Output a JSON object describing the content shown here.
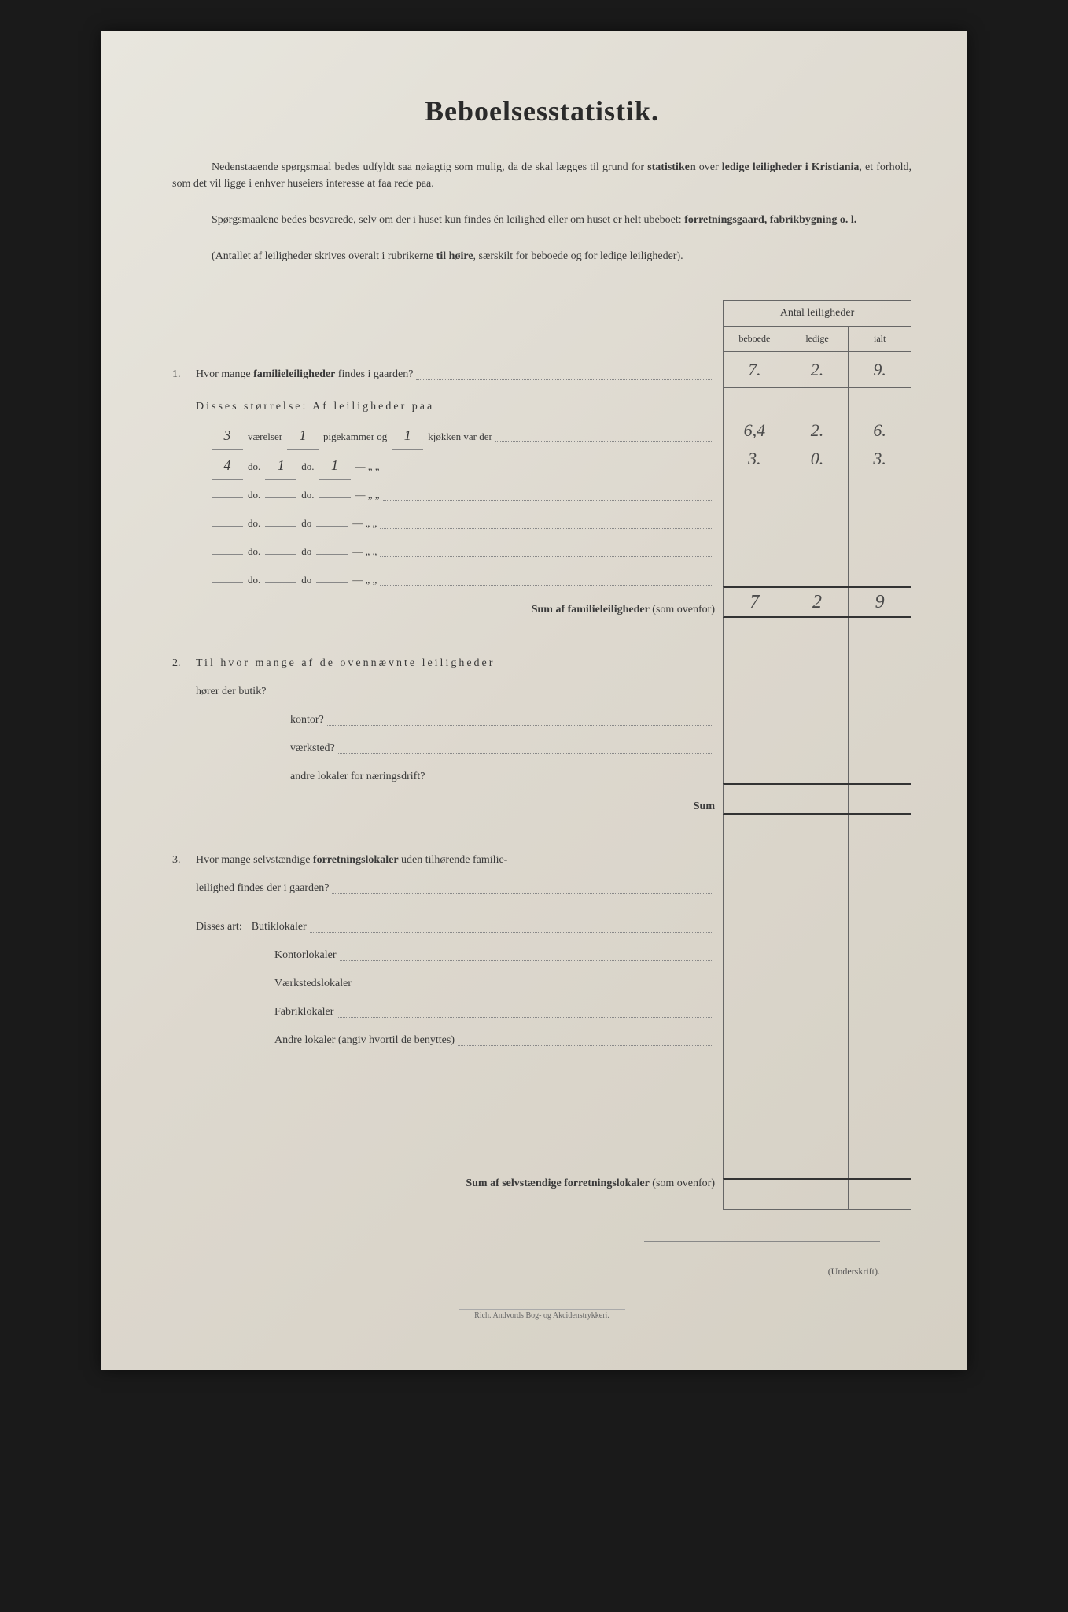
{
  "title": "Beboelsesstatistik.",
  "intro_p1": "Nedenstaaende spørgsmaal bedes udfyldt saa nøiagtig som mulig, da de skal lægges til grund for statistiken over ledige leiligheder i Kristiania, et forhold, som det vil ligge i enhver huseiers interesse at faa rede paa.",
  "intro_p2": "Spørgsmaalene bedes besvarede, selv om der i huset kun findes én leilighed eller om huset er helt ubeboet: forretningsgaard, fabrikbygning o. l.",
  "intro_p3": "(Antallet af leiligheder skrives overalt i rubrikerne til høire, særskilt for beboede og for ledige leiligheder).",
  "table": {
    "header": "Antal leiligheder",
    "cols": [
      "beboede",
      "ledige",
      "ialt"
    ]
  },
  "q1": {
    "num": "1.",
    "text": "Hvor mange",
    "bold": "familieleiligheder",
    "text2": "findes i gaarden?",
    "values": [
      "7.",
      "2.",
      "9."
    ],
    "sub_label": "Disses størrelse:  Af leiligheder paa",
    "rows": [
      {
        "v": "3",
        "p": "1",
        "k": "1",
        "word1": "værelser",
        "word2": "pigekammer og",
        "word3": "kjøkken var der",
        "vals": [
          "6,4",
          "2.",
          "6."
        ],
        "extra": "↪"
      },
      {
        "v": "4",
        "p": "1",
        "k": "1",
        "word1": "do.",
        "word2": "do.",
        "word3": "—",
        "vals": [
          "3.",
          "0.",
          "3."
        ],
        "extra": "↪"
      },
      {
        "v": "",
        "p": "",
        "k": "",
        "word1": "do.",
        "word2": "do.",
        "word3": "—",
        "vals": [
          "",
          "",
          ""
        ]
      },
      {
        "v": "",
        "p": "",
        "k": "",
        "word1": "do.",
        "word2": "do",
        "word3": "—",
        "vals": [
          "",
          "",
          ""
        ]
      },
      {
        "v": "",
        "p": "",
        "k": "",
        "word1": "do.",
        "word2": "do",
        "word3": "—",
        "vals": [
          "",
          "",
          ""
        ]
      },
      {
        "v": "",
        "p": "",
        "k": "",
        "word1": "do.",
        "word2": "do",
        "word3": "—",
        "vals": [
          "",
          "",
          ""
        ]
      }
    ],
    "sum_label": "Sum af familieleiligheder",
    "sum_paren": "(som ovenfor)",
    "sum_vals": [
      "7",
      "2",
      "9"
    ]
  },
  "q2": {
    "num": "2.",
    "text": "Til hvor mange af de ovennævnte leiligheder",
    "lines": [
      "hører der butik?",
      "kontor?",
      "værksted?",
      "andre lokaler for næringsdrift?"
    ],
    "sum": "Sum"
  },
  "q3": {
    "num": "3.",
    "text1": "Hvor mange selvstændige",
    "bold": "forretningslokaler",
    "text2": "uden tilhørende familie-",
    "text3": "leilighed findes der i gaarden?",
    "sub_label": "Disses art:",
    "lines": [
      "Butiklokaler",
      "Kontorlokaler",
      "Værkstedslokaler",
      "Fabriklokaler",
      "Andre lokaler (angiv hvortil de benyttes)"
    ],
    "sum_label": "Sum af selvstændige forretningslokaler",
    "sum_paren": "(som ovenfor)"
  },
  "signature": "(Underskrift).",
  "printer": "Rich. Andvords Bog- og Akcidenstrykkeri.",
  "colors": {
    "page_bg": "#ddd8ce",
    "text": "#3a3a3a",
    "border": "#666",
    "handwriting": "#4a4a4a"
  }
}
